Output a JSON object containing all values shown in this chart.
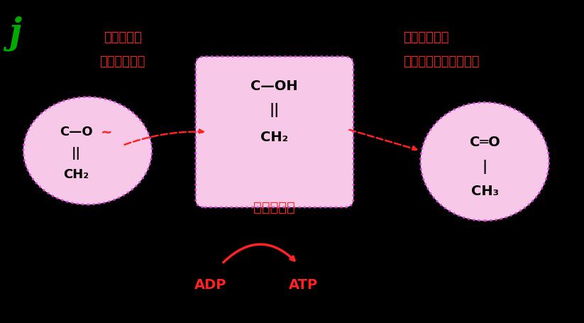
{
  "bg_color": "#000000",
  "title_letter": "j",
  "title_color": "#00aa00",
  "title_fontsize": 36,
  "red_color": "#ff2222",
  "pink_bg": "#f8c8e8",
  "pink_border": "#dd44dd",
  "text_color_black": "#000000",
  "label_left_top": "リン酸基が",
  "label_left_bottom": "転位されると",
  "label_right_top": "不安定なため",
  "label_right_bottom": "速やかにピルビン酸へ",
  "enol_label": "エノール型",
  "adp_label": "ADP",
  "atp_label": "ATP",
  "mol1_lines": [
    "C—O",
    "||",
    "CH₂"
  ],
  "mol2_lines": [
    "C—OH",
    "||",
    "CH₂"
  ],
  "mol3_lines": [
    "C═O",
    "|",
    "CH₃"
  ],
  "figsize": [
    8.23,
    4.55
  ],
  "dpi": 100
}
